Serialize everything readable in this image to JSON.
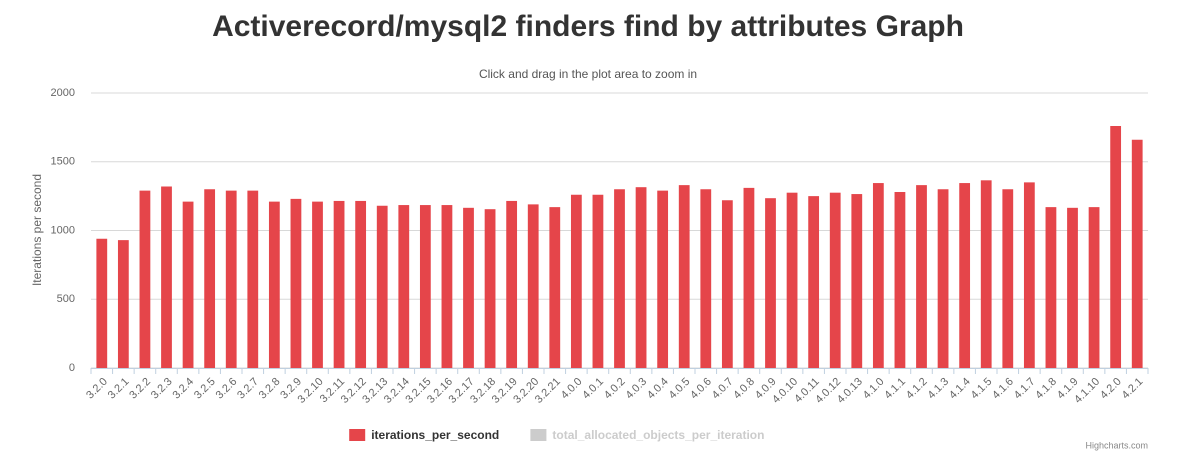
{
  "chart_data": {
    "type": "bar",
    "title": "Activerecord/mysql2 finders find by attributes Graph",
    "subtitle": "Click and drag in the plot area to zoom in",
    "y_label": "Iterations per second",
    "credits": "Highcharts.com",
    "categories": [
      "3.2.0",
      "3.2.1",
      "3.2.2",
      "3.2.3",
      "3.2.4",
      "3.2.5",
      "3.2.6",
      "3.2.7",
      "3.2.8",
      "3.2.9",
      "3.2.10",
      "3.2.11",
      "3.2.12",
      "3.2.13",
      "3.2.14",
      "3.2.15",
      "3.2.16",
      "3.2.17",
      "3.2.18",
      "3.2.19",
      "3.2.20",
      "3.2.21",
      "4.0.0",
      "4.0.1",
      "4.0.2",
      "4.0.3",
      "4.0.4",
      "4.0.5",
      "4.0.6",
      "4.0.7",
      "4.0.8",
      "4.0.9",
      "4.0.10",
      "4.0.11",
      "4.0.12",
      "4.0.13",
      "4.1.0",
      "4.1.1",
      "4.1.2",
      "4.1.3",
      "4.1.4",
      "4.1.5",
      "4.1.6",
      "4.1.7",
      "4.1.8",
      "4.1.9",
      "4.1.10",
      "4.2.0",
      "4.2.1"
    ],
    "series": [
      {
        "name": "iterations_per_second",
        "color": "#e5454a",
        "visible": true,
        "values": [
          940,
          930,
          1290,
          1320,
          1210,
          1300,
          1290,
          1290,
          1210,
          1230,
          1210,
          1215,
          1215,
          1180,
          1185,
          1185,
          1185,
          1165,
          1155,
          1215,
          1190,
          1170,
          1260,
          1260,
          1300,
          1315,
          1290,
          1330,
          1300,
          1220,
          1310,
          1235,
          1275,
          1250,
          1275,
          1265,
          1345,
          1280,
          1330,
          1300,
          1345,
          1365,
          1300,
          1350,
          1170,
          1165,
          1170,
          1760,
          1660
        ]
      },
      {
        "name": "total_allocated_objects_per_iteration",
        "color": "#cccccc",
        "visible": false
      }
    ],
    "ylim": [
      0,
      2000
    ],
    "yticks": [
      0,
      500,
      1000,
      1500,
      2000
    ],
    "grid": true
  }
}
